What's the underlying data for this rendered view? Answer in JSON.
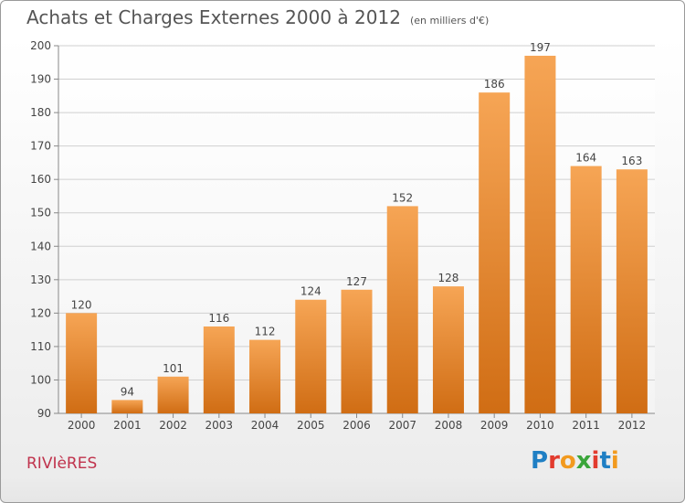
{
  "header": {
    "title": "Achats et Charges Externes 2000 à 2012",
    "subtitle": "(en milliers d'€)"
  },
  "footer": {
    "city": "RIVIèRES",
    "logo": "Proxiti",
    "logo_colors": [
      "#1f7fc4",
      "#e23b2e",
      "#f29a1f",
      "#3aa53a",
      "#e23b2e",
      "#1f7fc4",
      "#f29a1f"
    ]
  },
  "colors": {
    "bar_top": "#f6a555",
    "bar_bottom": "#d06d14",
    "grid": "#d0d0d0",
    "axis_text": "#444444"
  },
  "chart_data": {
    "type": "bar",
    "title": "Achats et Charges Externes 2000 à 2012",
    "subtitle": "(en milliers d'€)",
    "categories": [
      "2000",
      "2001",
      "2002",
      "2003",
      "2004",
      "2005",
      "2006",
      "2007",
      "2008",
      "2009",
      "2010",
      "2011",
      "2012"
    ],
    "values": [
      120,
      94,
      101,
      116,
      112,
      124,
      127,
      152,
      128,
      186,
      197,
      164,
      163
    ],
    "ylim": [
      90,
      200
    ],
    "yticks": [
      90,
      100,
      110,
      120,
      130,
      140,
      150,
      160,
      170,
      180,
      190,
      200
    ],
    "grid": true,
    "xlabel": "",
    "ylabel": ""
  }
}
